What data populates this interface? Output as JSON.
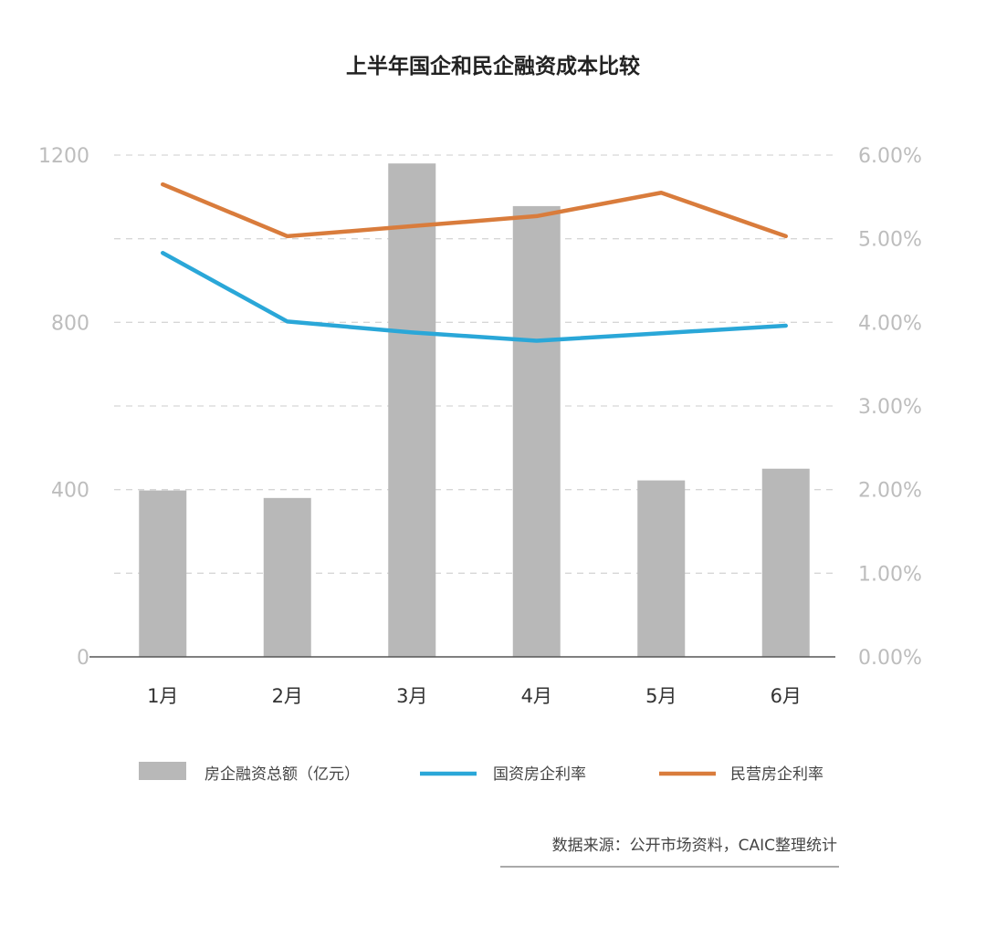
{
  "chart_data": {
    "type": "bar+line",
    "title": "上半年国企和民企融资成本比较",
    "categories": [
      "1月",
      "2月",
      "3月",
      "4月",
      "5月",
      "6月"
    ],
    "left_axis": {
      "ylim": [
        0,
        1200
      ],
      "ticks": [
        "0",
        "400",
        "800",
        "1200"
      ],
      "tick_values": [
        0,
        400,
        800,
        1200
      ]
    },
    "right_axis": {
      "ylim": [
        0,
        6
      ],
      "ticks": [
        "0.00%",
        "1.00%",
        "2.00%",
        "3.00%",
        "4.00%",
        "5.00%",
        "6.00%"
      ],
      "tick_values": [
        0,
        1,
        2,
        3,
        4,
        5,
        6
      ]
    },
    "grid": true,
    "legend_position": "bottom",
    "series": [
      {
        "name": "房企融资总额（亿元）",
        "type": "bar",
        "axis": "left",
        "color": "#b8b8b8",
        "values": [
          398,
          380,
          1180,
          1078,
          422,
          450
        ]
      },
      {
        "name": "国资房企利率",
        "type": "line",
        "axis": "right",
        "color": "#2aa7d8",
        "values": [
          4.83,
          4.01,
          3.88,
          3.78,
          3.87,
          3.96
        ]
      },
      {
        "name": "民营房企利率",
        "type": "line",
        "axis": "right",
        "color": "#d97c3c",
        "values": [
          5.65,
          5.03,
          5.15,
          5.27,
          5.55,
          5.03
        ]
      }
    ],
    "source": "数据来源：公开市场资料，CAIC整理统计"
  }
}
